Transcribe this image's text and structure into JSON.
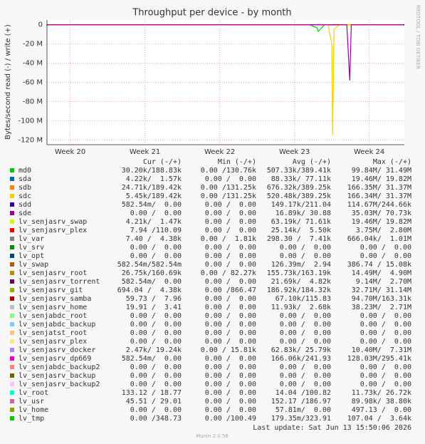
{
  "chart_data": {
    "type": "line",
    "title": "Throughput per device - by month",
    "ylabel": "Bytes/second read (-) / write (+)",
    "xlim": [
      19.69,
      24.47
    ],
    "xticks": [
      {
        "value": 20,
        "label": "Week 20"
      },
      {
        "value": 21,
        "label": "Week 21"
      },
      {
        "value": 22,
        "label": "Week 22"
      },
      {
        "value": 23,
        "label": "Week 23"
      },
      {
        "value": 24,
        "label": "Week 24"
      }
    ],
    "ylim": [
      -125000000,
      5000000
    ],
    "yticks": [
      0,
      {
        "value": -20000000,
        "label": "-20 M"
      },
      {
        "value": -40000000,
        "label": "-40 M"
      },
      {
        "value": -60000000,
        "label": "-60 M"
      },
      {
        "value": -80000000,
        "label": "-80 M"
      },
      {
        "value": -100000000,
        "label": "-100 M"
      },
      {
        "value": -120000000,
        "label": "-120 M"
      }
    ],
    "grid": true,
    "legend_headers": [
      "Cur (-/+)",
      "Min (-/+)",
      "Avg (-/+)",
      "Max (-/+)"
    ],
    "series": [
      {
        "name": "md0",
        "color": "#00cc00",
        "cur": "30.20k/188.83k",
        "min": "0.00 /130.76k",
        "avg": "507.33k/389.41k",
        "max": "99.84M/ 31.49M",
        "x": [
          19.7,
          23.2,
          23.3,
          23.32,
          23.4,
          24.46
        ],
        "values": [
          0,
          0,
          -3000000,
          -7000000,
          0,
          0
        ]
      },
      {
        "name": "sda",
        "color": "#0066b3",
        "cur": "4.22k/  1.57k",
        "min": "0.00 /  0.00",
        "avg": "88.33k/ 77.11k",
        "max": "19.46M/ 19.82M"
      },
      {
        "name": "sdb",
        "color": "#ff8000",
        "cur": "24.71k/189.42k",
        "min": "0.00 /131.25k",
        "avg": "676.32k/389.25k",
        "max": "166.35M/ 31.37M"
      },
      {
        "name": "sdc",
        "color": "#ffcc00",
        "cur": "5.45k/189.42k",
        "min": "0.00 /131.25k",
        "avg": "520.48k/389.25k",
        "max": "166.34M/ 31.37M",
        "x": [
          19.7,
          23.45,
          23.5,
          23.51,
          23.53,
          23.6,
          24.46
        ],
        "values": [
          0,
          0,
          -20000000,
          -115000000,
          -5000000,
          0,
          0
        ]
      },
      {
        "name": "sdd",
        "color": "#330099",
        "cur": "582.54m/  0.00",
        "min": "0.00 /  0.00",
        "avg": "149.17k/211.04",
        "max": "114.67M/244.66k"
      },
      {
        "name": "sde",
        "color": "#990099",
        "cur": "0.00 /  0.00",
        "min": "0.00 /  0.00",
        "avg": "16.89k/ 30.88",
        "max": "35.03M/ 70.73k",
        "x": [
          19.7,
          23.7,
          23.74,
          23.76,
          24.46
        ],
        "values": [
          0,
          0,
          -58000000,
          0,
          0
        ]
      },
      {
        "name": "lv_senjasrv_swap",
        "color": "#ccff00",
        "cur": "4.21k/  1.47k",
        "min": "0.00 /  0.00",
        "avg": "63.19k/ 71.61k",
        "max": "19.46M/ 19.82M"
      },
      {
        "name": "lv_senjasrv_plex",
        "color": "#ff0000",
        "cur": "7.94 /110.09",
        "min": "0.00 /  0.00",
        "avg": "25.14k/  5.50k",
        "max": "3.75M/  2.80M"
      },
      {
        "name": "lv_var",
        "color": "#808080",
        "cur": "7.40 /  4.38k",
        "min": "0.00 /  1.81k",
        "avg": "298.30 /  7.41k",
        "max": "666.04k/  1.01M"
      },
      {
        "name": "lv_srv",
        "color": "#008f00",
        "cur": "0.00 /  0.00",
        "min": "0.00 /  0.00",
        "avg": "0.00 /  0.00",
        "max": "0.00 /  0.00"
      },
      {
        "name": "lv_opt",
        "color": "#00487d",
        "cur": "0.00 /  0.00",
        "min": "0.00 /  0.00",
        "avg": "0.00 /  0.00",
        "max": "0.00 /  0.00"
      },
      {
        "name": "lv_swap",
        "color": "#b35a00",
        "cur": "582.54m/582.54m",
        "min": "0.00 /  0.00",
        "avg": "126.39m/  2.94",
        "max": "386.74 / 15.08k"
      },
      {
        "name": "lv_senjasrv_root",
        "color": "#b38f00",
        "cur": "26.75k/160.69k",
        "min": "0.00 / 82.27k",
        "avg": "155.73k/163.19k",
        "max": "14.49M/  4.90M"
      },
      {
        "name": "lv_senjasrv_torrent",
        "color": "#6b006b",
        "cur": "582.54m/  0.00",
        "min": "0.00 /  0.00",
        "avg": "21.69k/  4.82k",
        "max": "9.14M/  2.70M"
      },
      {
        "name": "lv_senjasrv_git",
        "color": "#8fb300",
        "cur": "694.04 /  4.38k",
        "min": "0.00 /866.47",
        "avg": "186.92k/184.32k",
        "max": "32.71M/ 31.14M"
      },
      {
        "name": "lv_senjasrv_samba",
        "color": "#b30000",
        "cur": "59.73 /  7.96",
        "min": "0.00 /  0.00",
        "avg": "67.10k/115.83",
        "max": "94.70M/163.31k"
      },
      {
        "name": "lv_senjasrv_home",
        "color": "#bebebe",
        "cur": "19.91 /  3.41",
        "min": "0.00 /  0.00",
        "avg": "11.93k/  2.68k",
        "max": "38.23M/  2.71M"
      },
      {
        "name": "lv_senjabdc_root",
        "color": "#80ff80",
        "cur": "0.00 /  0.00",
        "min": "0.00 /  0.00",
        "avg": "0.00 /  0.00",
        "max": "0.00 /  0.00"
      },
      {
        "name": "lv_senjabdc_backup",
        "color": "#80c9ff",
        "cur": "0.00 /  0.00",
        "min": "0.00 /  0.00",
        "avg": "0.00 /  0.00",
        "max": "0.00 /  0.00"
      },
      {
        "name": "lv_senjatst_root",
        "color": "#ffc080",
        "cur": "0.00 /  0.00",
        "min": "0.00 /  0.00",
        "avg": "0.00 /  0.00",
        "max": "0.00 /  0.00"
      },
      {
        "name": "lv_senjasrv_plex",
        "color": "#ffe680",
        "cur": "0.00 /  0.00",
        "min": "0.00 /  0.00",
        "avg": "0.00 /  0.00",
        "max": "0.00 /  0.00"
      },
      {
        "name": "lv_senjasrv_docker",
        "color": "#aa80ff",
        "cur": "2.47k/ 19.24k",
        "min": "0.00 / 15.81k",
        "avg": "62.83k/ 25.79k",
        "max": "10.40M/  7.31M"
      },
      {
        "name": "lv_senjasrv_dp669",
        "color": "#ee00cc",
        "cur": "582.54m/  0.00",
        "min": "0.00 /  0.00",
        "avg": "166.06k/241.93",
        "max": "128.03M/295.41k"
      },
      {
        "name": "lv_senjabdc_backup2",
        "color": "#ff8080",
        "cur": "0.00 /  0.00",
        "min": "0.00 /  0.00",
        "avg": "0.00 /  0.00",
        "max": "0.00 /  0.00"
      },
      {
        "name": "lv_senjasrv_backup",
        "color": "#666600",
        "cur": "0.00 /  0.00",
        "min": "0.00 /  0.00",
        "avg": "0.00 /  0.00",
        "max": "0.00 /  0.00"
      },
      {
        "name": "lv_senjasrv_backup2",
        "color": "#ffbfff",
        "cur": "0.00 /  0.00",
        "min": "0.00 /  0.00",
        "avg": "0.00 /  0.00",
        "max": "0.00 /  0.00"
      },
      {
        "name": "lv_root",
        "color": "#00ffcc",
        "cur": "133.12 / 18.77",
        "min": "0.00 /  0.00",
        "avg": "14.04 /100.82",
        "max": "11.73k/ 26.72k"
      },
      {
        "name": "lv_usr",
        "color": "#cc6699",
        "cur": "45.51 / 29.01",
        "min": "0.00 /  0.00",
        "avg": "152.17 /186.97",
        "max": "89.98k/ 38.80k"
      },
      {
        "name": "lv_home",
        "color": "#999900",
        "cur": "0.00 /  0.00",
        "min": "0.00 /  0.00",
        "avg": "57.81m/  0.00",
        "max": "497.13 /  0.00"
      },
      {
        "name": "lv_tmp",
        "color": "#00cc00",
        "cur": "0.00 /348.73",
        "min": "0.00 /100.49",
        "avg": "179.35m/323.91",
        "max": "107.04 /  3.64k"
      }
    ]
  },
  "side_label": "RRDTOOL / TOBI OETIKER",
  "last_update": "Last update: Sat Jun 13 15:50:06 2026",
  "footer": "Munin 2.0.56"
}
